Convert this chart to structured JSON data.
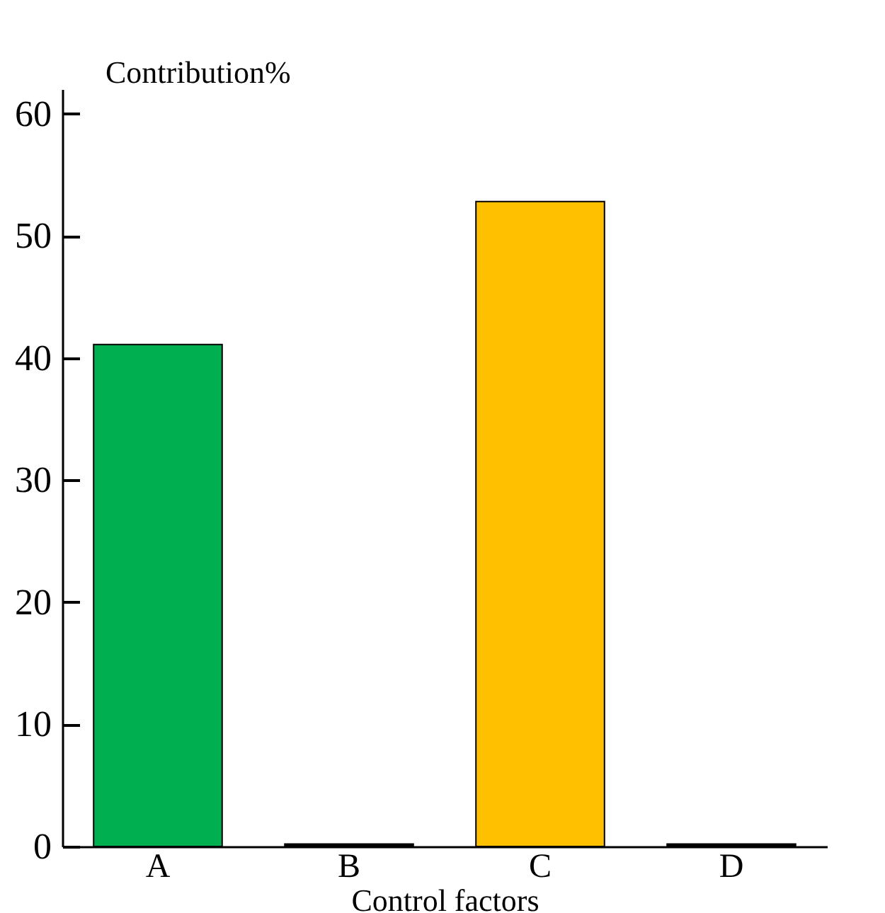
{
  "chart_data": {
    "type": "bar",
    "xlabel": "Control factors",
    "ylabel": "Contribution%",
    "categories": [
      "A",
      "B",
      "C",
      "D"
    ],
    "values": [
      41.1,
      0.2,
      52.8,
      0.2
    ],
    "colors": [
      "#00b050",
      "#000000",
      "#ffc000",
      "#000000"
    ],
    "ylim": [
      0,
      62
    ],
    "yticks": [
      0,
      10,
      20,
      30,
      40,
      50,
      60
    ],
    "grid": false
  }
}
